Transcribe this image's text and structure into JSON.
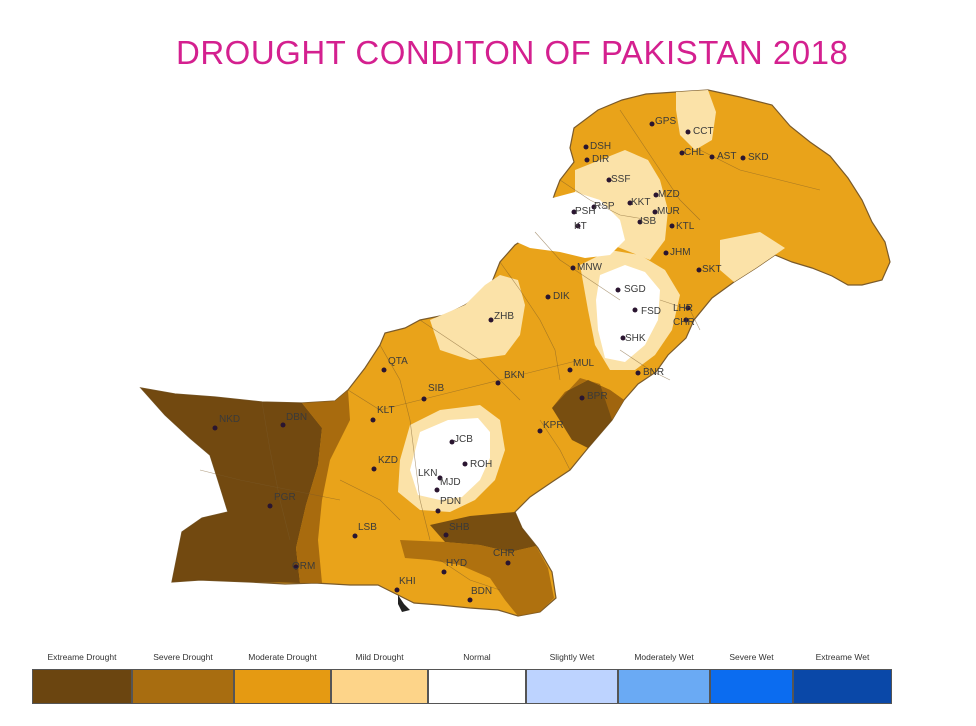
{
  "title": "DROUGHT CONDITON OF PAKISTAN 2018",
  "colors": {
    "extreme": "#6b4510",
    "severe": "#a4680e",
    "moderate": "#e9a31a",
    "mild": "#fbe2a8",
    "normal": "#ffffff"
  },
  "legend": [
    {
      "label": "Extreame Drought",
      "color": "#6b4510"
    },
    {
      "label": "Severe Drought",
      "color": "#a86d10"
    },
    {
      "label": "Moderate Drought",
      "color": "#e59a12"
    },
    {
      "label": "Mild Drought",
      "color": "#fdd489"
    },
    {
      "label": "Normal",
      "color": "#ffffff"
    },
    {
      "label": "Slightly Wet",
      "color": "#bdd3ff"
    },
    {
      "label": "Moderately Wet",
      "color": "#6aaaf4"
    },
    {
      "label": "Severe Wet",
      "color": "#0b6cf0"
    },
    {
      "label": "Extreame Wet",
      "color": "#0a48a8"
    }
  ],
  "cities": {
    "gps": "GPS",
    "cct": "CCT",
    "dsh": "DSH",
    "chl": "CHL",
    "ast": "AST",
    "skd": "SKD",
    "dir": "DIR",
    "ssf": "SSF",
    "mzd": "MZD",
    "kkt": "KKT",
    "rsp": "RSP",
    "psh": "PSH",
    "mur": "MUR",
    "isb": "ISB",
    "ktl": "KTL",
    "kt": "KT",
    "jhm": "JHM",
    "skt": "SKT",
    "mnw": "MNW",
    "sgd": "SGD",
    "dik": "DIK",
    "lhr": "LHR",
    "zhb": "ZHB",
    "fsd": "FSD",
    "chr_n": "CHR",
    "shk": "SHK",
    "qta": "QTA",
    "mul": "MUL",
    "bkn": "BKN",
    "bnr": "BNR",
    "sib": "SIB",
    "bpr": "BPR",
    "nkd": "NKD",
    "dbn": "DBN",
    "klt": "KLT",
    "kpr": "KPR",
    "jcb": "JCB",
    "kzd": "KZD",
    "roh": "ROH",
    "lkn": "LKN",
    "mjd": "MJD",
    "pgr": "PGR",
    "pdn": "PDN",
    "shb": "SHB",
    "lsb": "LSB",
    "chr_s": "CHR",
    "hyd": "HYD",
    "orm": "ORM",
    "khi": "KHI",
    "bdn": "BDN"
  }
}
